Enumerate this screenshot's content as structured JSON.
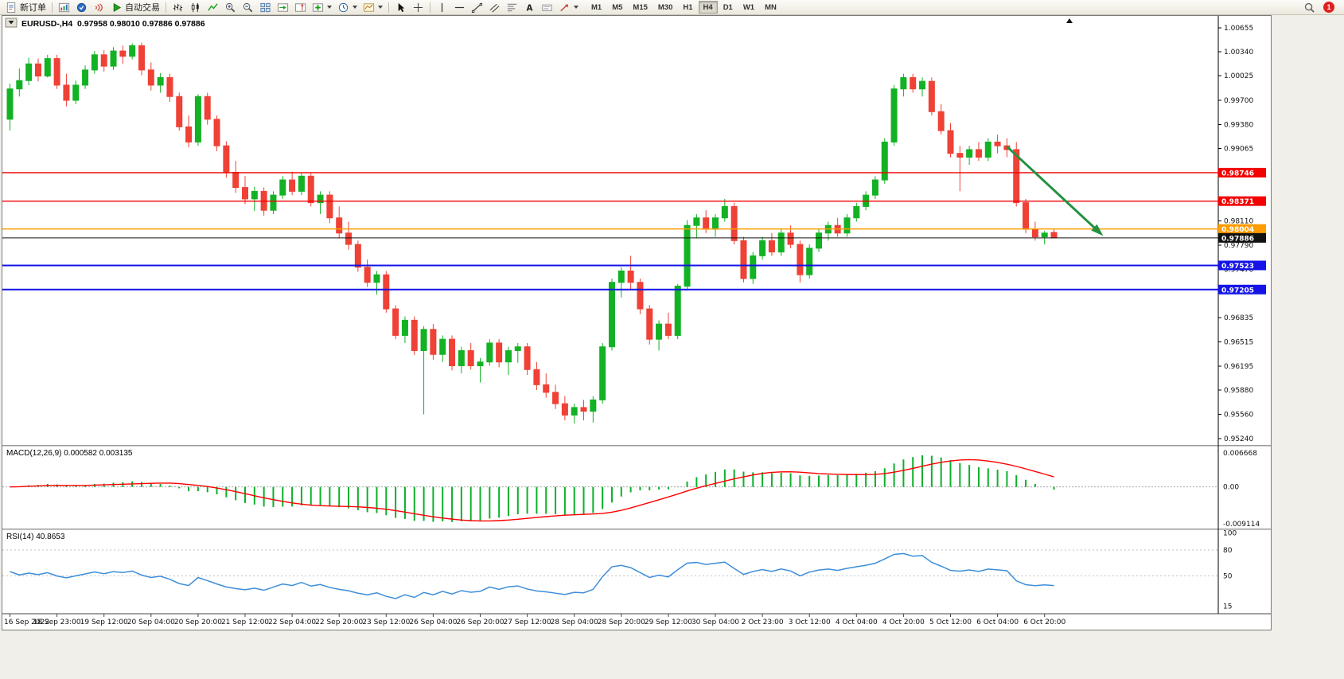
{
  "toolbar": {
    "new_order_label": "新订单",
    "autotrading_label": "自动交易",
    "text_tool_label": "A",
    "notification_badge": "1",
    "timeframes": [
      {
        "label": "M1",
        "active": false
      },
      {
        "label": "M5",
        "active": false
      },
      {
        "label": "M15",
        "active": false
      },
      {
        "label": "M30",
        "active": false
      },
      {
        "label": "H1",
        "active": false
      },
      {
        "label": "H4",
        "active": true
      },
      {
        "label": "D1",
        "active": false
      },
      {
        "label": "W1",
        "active": false
      },
      {
        "label": "MN",
        "active": false
      }
    ]
  },
  "chart_data": {
    "type": "candlestick",
    "symbol_label": "EURUSD-,H4",
    "ohlc_label": "0.97958 0.98010 0.97886 0.97886",
    "current": {
      "open": "0.97958",
      "high": "0.98010",
      "low": "0.97886",
      "close": "0.97886"
    },
    "up_color": "#12b224",
    "down_color": "#ef4136",
    "y_ticks": [
      "1.00655",
      "1.00340",
      "1.00025",
      "0.99700",
      "0.99380",
      "0.99065",
      "0.98110",
      "0.97790",
      "0.97470",
      "0.96835",
      "0.96515",
      "0.96195",
      "0.95880",
      "0.95560",
      "0.95240"
    ],
    "levels": [
      {
        "label": "0.98746",
        "price": 0.98746,
        "color": "#f40000",
        "width": 1.4
      },
      {
        "label": "0.98371",
        "price": 0.98371,
        "color": "#f40000",
        "width": 1.4
      },
      {
        "label": "0.98004",
        "price": 0.98004,
        "color": "#ff9c00",
        "width": 1.6
      },
      {
        "label": "0.97886",
        "price": 0.97886,
        "color": "#111111",
        "width": 1
      },
      {
        "label": "0.97523",
        "price": 0.97523,
        "color": "#1414e8",
        "width": 2
      },
      {
        "label": "0.97205",
        "price": 0.97205,
        "color": "#1414e8",
        "width": 2
      }
    ],
    "annotations": [
      {
        "type": "arrow",
        "color": "#23913f",
        "from_bar": 106,
        "from_price": 0.9909,
        "to_bar": 116,
        "to_price": 0.9794
      }
    ],
    "macd": {
      "label": "MACD(12,26,9) 0.000582 0.003135",
      "params": [
        12,
        26,
        9
      ],
      "value": "0.000582",
      "signal_value": "0.003135",
      "axis": [
        "0.006668",
        "0.00",
        "-0.009114"
      ],
      "hist_color": "#0cb02c",
      "signal_color": "#ff0000"
    },
    "rsi": {
      "label": "RSI(14) 40.8653",
      "period": 14,
      "value": "40.8653",
      "axis": [
        "100",
        "80",
        "50",
        "15"
      ],
      "levels": [
        80,
        50
      ],
      "color": "#3e8ed9"
    },
    "x_axis_labels": [
      "16 Sep 2022",
      "18 Sep 23:00",
      "19 Sep 12:00",
      "20 Sep 04:00",
      "20 Sep 20:00",
      "21 Sep 12:00",
      "22 Sep 04:00",
      "22 Sep 20:00",
      "23 Sep 12:00",
      "26 Sep 04:00",
      "26 Sep 20:00",
      "27 Sep 12:00",
      "28 Sep 04:00",
      "28 Sep 20:00",
      "29 Sep 12:00",
      "30 Sep 04:00",
      "2 Oct 23:00",
      "3 Oct 12:00",
      "4 Oct 04:00",
      "4 Oct 20:00",
      "5 Oct 12:00",
      "6 Oct 04:00",
      "6 Oct 20:00"
    ],
    "candles": [
      [
        0.9945,
        0.9992,
        0.993,
        0.9985
      ],
      [
        0.9985,
        1.0012,
        0.9975,
        0.9996
      ],
      [
        0.9996,
        1.0026,
        0.999,
        1.0018
      ],
      [
        1.0018,
        1.0025,
        0.9995,
        1.0002
      ],
      [
        1.0002,
        1.003,
        1.0,
        1.0025
      ],
      [
        1.0025,
        1.003,
        0.9985,
        0.999
      ],
      [
        0.999,
        1.0005,
        0.9962,
        0.997
      ],
      [
        0.997,
        0.9996,
        0.9965,
        0.999
      ],
      [
        0.999,
        1.0016,
        0.9985,
        1.001
      ],
      [
        1.001,
        1.0035,
        1.0005,
        1.003
      ],
      [
        1.003,
        1.0036,
        1.0008,
        1.0015
      ],
      [
        1.0015,
        1.004,
        1.001,
        1.0035
      ],
      [
        1.0035,
        1.0042,
        1.0018,
        1.0028
      ],
      [
        1.0028,
        1.0045,
        1.0024,
        1.0042
      ],
      [
        1.0042,
        1.0046,
        1.0003,
        1.001
      ],
      [
        1.001,
        1.002,
        0.9983,
        0.999
      ],
      [
        0.999,
        1.0006,
        0.998,
        1.0
      ],
      [
        1.0,
        1.0005,
        0.9968,
        0.9975
      ],
      [
        0.9975,
        0.998,
        0.993,
        0.9935
      ],
      [
        0.9935,
        0.995,
        0.9908,
        0.9915
      ],
      [
        0.9915,
        0.9978,
        0.991,
        0.9975
      ],
      [
        0.9975,
        0.998,
        0.9938,
        0.9945
      ],
      [
        0.9945,
        0.995,
        0.9903,
        0.991
      ],
      [
        0.991,
        0.9916,
        0.9868,
        0.9875
      ],
      [
        0.9875,
        0.989,
        0.9848,
        0.9855
      ],
      [
        0.9855,
        0.987,
        0.9833,
        0.984
      ],
      [
        0.984,
        0.9856,
        0.9824,
        0.985
      ],
      [
        0.985,
        0.9855,
        0.9818,
        0.9825
      ],
      [
        0.9825,
        0.985,
        0.982,
        0.9845
      ],
      [
        0.9845,
        0.987,
        0.984,
        0.9865
      ],
      [
        0.9865,
        0.9876,
        0.9845,
        0.985
      ],
      [
        0.985,
        0.9875,
        0.9845,
        0.987
      ],
      [
        0.987,
        0.9875,
        0.983,
        0.9835
      ],
      [
        0.9835,
        0.985,
        0.982,
        0.9845
      ],
      [
        0.9845,
        0.985,
        0.9808,
        0.9815
      ],
      [
        0.9815,
        0.983,
        0.9788,
        0.9795
      ],
      [
        0.9795,
        0.981,
        0.9773,
        0.978
      ],
      [
        0.978,
        0.9785,
        0.9744,
        0.975
      ],
      [
        0.975,
        0.976,
        0.9724,
        0.973
      ],
      [
        0.973,
        0.9745,
        0.9714,
        0.974
      ],
      [
        0.974,
        0.9745,
        0.969,
        0.9695
      ],
      [
        0.9695,
        0.97,
        0.9655,
        0.966
      ],
      [
        0.966,
        0.9685,
        0.965,
        0.968
      ],
      [
        0.968,
        0.9685,
        0.9634,
        0.964
      ],
      [
        0.964,
        0.9672,
        0.9556,
        0.9668
      ],
      [
        0.9668,
        0.9675,
        0.9628,
        0.9635
      ],
      [
        0.9635,
        0.966,
        0.9625,
        0.9655
      ],
      [
        0.9655,
        0.966,
        0.9614,
        0.962
      ],
      [
        0.962,
        0.9645,
        0.961,
        0.964
      ],
      [
        0.964,
        0.965,
        0.9615,
        0.962
      ],
      [
        0.962,
        0.963,
        0.9598,
        0.9625
      ],
      [
        0.9625,
        0.9655,
        0.962,
        0.965
      ],
      [
        0.965,
        0.9655,
        0.9618,
        0.9625
      ],
      [
        0.9625,
        0.9645,
        0.9608,
        0.964
      ],
      [
        0.964,
        0.965,
        0.9624,
        0.9645
      ],
      [
        0.9645,
        0.965,
        0.9608,
        0.9615
      ],
      [
        0.9615,
        0.9625,
        0.9588,
        0.9595
      ],
      [
        0.9595,
        0.961,
        0.9578,
        0.9585
      ],
      [
        0.9585,
        0.9595,
        0.9563,
        0.957
      ],
      [
        0.957,
        0.958,
        0.9548,
        0.9555
      ],
      [
        0.9555,
        0.957,
        0.9544,
        0.9565
      ],
      [
        0.9565,
        0.9575,
        0.9548,
        0.956
      ],
      [
        0.956,
        0.958,
        0.9545,
        0.9575
      ],
      [
        0.9575,
        0.965,
        0.957,
        0.9645
      ],
      [
        0.9645,
        0.9735,
        0.964,
        0.973
      ],
      [
        0.973,
        0.975,
        0.971,
        0.9745
      ],
      [
        0.9745,
        0.9765,
        0.972,
        0.973
      ],
      [
        0.973,
        0.9735,
        0.9688,
        0.9695
      ],
      [
        0.9695,
        0.97,
        0.9648,
        0.9655
      ],
      [
        0.9655,
        0.968,
        0.964,
        0.9675
      ],
      [
        0.9675,
        0.969,
        0.9655,
        0.966
      ],
      [
        0.966,
        0.9728,
        0.9655,
        0.9725
      ],
      [
        0.9725,
        0.9812,
        0.972,
        0.9805
      ],
      [
        0.9805,
        0.982,
        0.9788,
        0.9815
      ],
      [
        0.9815,
        0.9825,
        0.9795,
        0.98
      ],
      [
        0.98,
        0.982,
        0.979,
        0.9815
      ],
      [
        0.9815,
        0.984,
        0.981,
        0.983
      ],
      [
        0.983,
        0.9835,
        0.978,
        0.9785
      ],
      [
        0.9785,
        0.979,
        0.973,
        0.9735
      ],
      [
        0.9735,
        0.977,
        0.9728,
        0.9765
      ],
      [
        0.9765,
        0.979,
        0.976,
        0.9785
      ],
      [
        0.9785,
        0.9795,
        0.9765,
        0.977
      ],
      [
        0.977,
        0.98,
        0.9765,
        0.9795
      ],
      [
        0.9795,
        0.9805,
        0.9775,
        0.978
      ],
      [
        0.978,
        0.9785,
        0.973,
        0.974
      ],
      [
        0.974,
        0.978,
        0.9735,
        0.9775
      ],
      [
        0.9775,
        0.98,
        0.977,
        0.9795
      ],
      [
        0.9795,
        0.981,
        0.9785,
        0.9805
      ],
      [
        0.9805,
        0.9815,
        0.979,
        0.9795
      ],
      [
        0.9795,
        0.982,
        0.979,
        0.9815
      ],
      [
        0.9815,
        0.9835,
        0.981,
        0.983
      ],
      [
        0.983,
        0.985,
        0.9825,
        0.9845
      ],
      [
        0.9845,
        0.987,
        0.984,
        0.9865
      ],
      [
        0.9865,
        0.992,
        0.986,
        0.9915
      ],
      [
        0.9915,
        0.999,
        0.991,
        0.9985
      ],
      [
        0.9985,
        1.0005,
        0.9975,
        1.0
      ],
      [
        1.0,
        1.0005,
        0.998,
        0.9985
      ],
      [
        0.9985,
        1.0,
        0.9975,
        0.9995
      ],
      [
        0.9995,
        1.0,
        0.995,
        0.9955
      ],
      [
        0.9955,
        0.9965,
        0.9925,
        0.993
      ],
      [
        0.993,
        0.994,
        0.9895,
        0.99
      ],
      [
        0.99,
        0.991,
        0.985,
        0.9895
      ],
      [
        0.9895,
        0.991,
        0.9885,
        0.9905
      ],
      [
        0.9905,
        0.9915,
        0.989,
        0.9895
      ],
      [
        0.9895,
        0.992,
        0.989,
        0.9915
      ],
      [
        0.9915,
        0.9925,
        0.99,
        0.991
      ],
      [
        0.991,
        0.992,
        0.9895,
        0.9905
      ],
      [
        0.9905,
        0.9915,
        0.983,
        0.9835
      ],
      [
        0.9835,
        0.984,
        0.9795,
        0.98
      ],
      [
        0.98,
        0.981,
        0.9785,
        0.979
      ],
      [
        0.979,
        0.9798,
        0.978,
        0.9795
      ],
      [
        0.97958,
        0.9801,
        0.97886,
        0.97886
      ]
    ]
  }
}
